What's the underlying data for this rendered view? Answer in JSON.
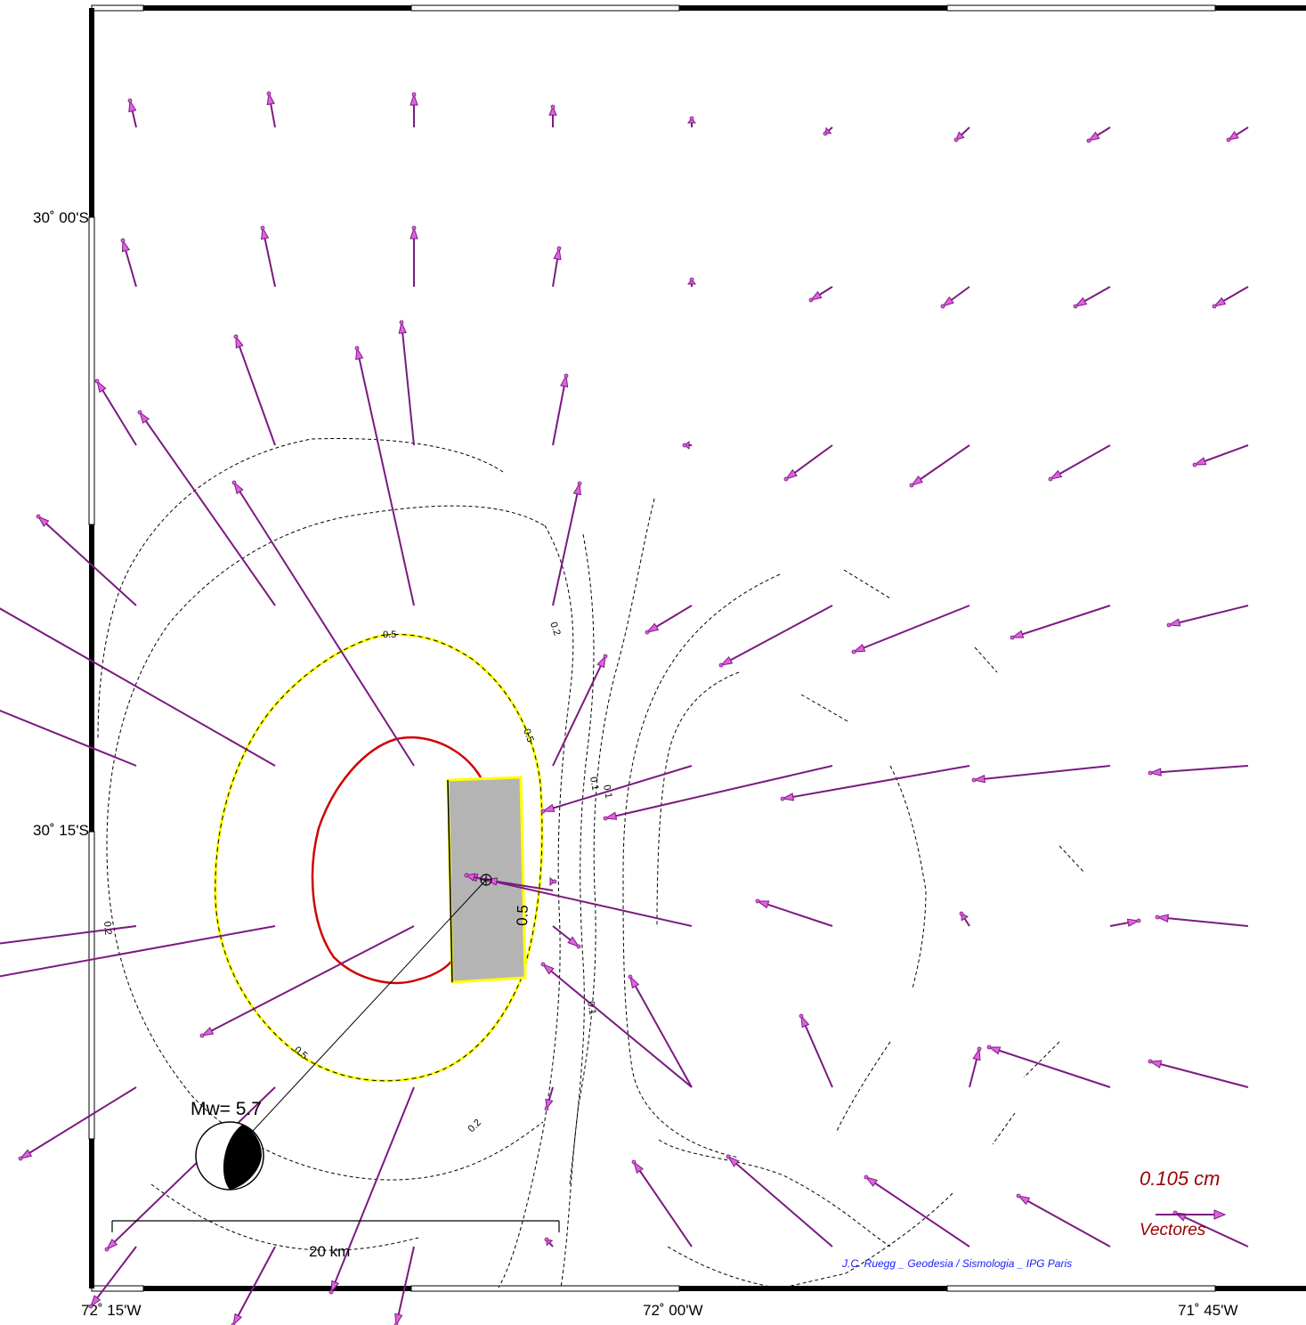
{
  "axes": {
    "lat_labels": [
      "30˚ 00'S",
      "30˚ 15'S"
    ],
    "lon_labels": [
      "72˚ 15'W",
      "72˚ 00'W",
      "71˚ 45'W"
    ]
  },
  "contours": {
    "labels": [
      "0.5",
      "0.5",
      "0.5",
      "0.2",
      "0.2",
      "0.2",
      "0.1",
      "0.1",
      "0.1",
      "0.5"
    ]
  },
  "event": {
    "magnitude_label": "Mw= 5.7"
  },
  "scale_bar": {
    "label": "20 km"
  },
  "legend": {
    "value_label": "0.105  cm",
    "vectors_label": "Vectores"
  },
  "credit": {
    "text": "J.C. Ruegg _ Geodesia / Sismologia _ IPG Paris"
  },
  "colors": {
    "vector": "#7a1a80",
    "vector_head": "#e060e0",
    "contour_red": "#d00000",
    "contour_yellow": "#ffff00",
    "fault_fill": "#b4b4b4",
    "legend_text": "#9a0000",
    "credit_text": "#1a1aff"
  }
}
